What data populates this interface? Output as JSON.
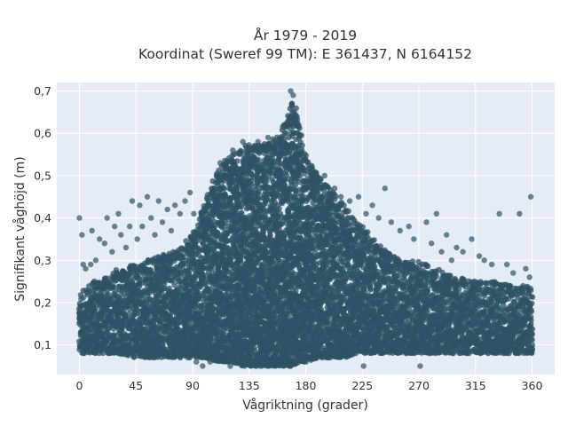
{
  "chart_data": {
    "type": "scatter",
    "title_line1": "År 1979 - 2019",
    "title_line2": "Koordinat (Sweref 99 TM): E 361437, N 6164152",
    "xlabel": "Vågriktning (grader)",
    "ylabel": "Signifikant våghöjd (m)",
    "xlim": [
      -18,
      378
    ],
    "ylim": [
      0.03,
      0.72
    ],
    "xticks": [
      0,
      45,
      90,
      135,
      180,
      225,
      270,
      315,
      360
    ],
    "xtick_labels": [
      "0",
      "45",
      "90",
      "135",
      "180",
      "225",
      "270",
      "315",
      "360"
    ],
    "yticks": [
      0.1,
      0.2,
      0.3,
      0.4,
      0.5,
      0.6,
      0.7
    ],
    "ytick_labels": [
      "0,1",
      "0,2",
      "0,3",
      "0,4",
      "0,5",
      "0,6",
      "0,7"
    ],
    "grid": true,
    "marker_color": "#2f5366",
    "plot_background": "#e5ecf6",
    "envelope": {
      "direction": [
        0,
        10,
        20,
        30,
        45,
        60,
        75,
        90,
        100,
        110,
        120,
        130,
        135,
        140,
        150,
        160,
        165,
        170,
        175,
        180,
        190,
        200,
        210,
        225,
        240,
        255,
        270,
        285,
        300,
        315,
        330,
        345,
        360
      ],
      "upper": [
        0.22,
        0.25,
        0.26,
        0.28,
        0.29,
        0.31,
        0.32,
        0.36,
        0.44,
        0.52,
        0.55,
        0.57,
        0.58,
        0.57,
        0.58,
        0.6,
        0.64,
        0.68,
        0.63,
        0.55,
        0.5,
        0.47,
        0.43,
        0.38,
        0.33,
        0.3,
        0.3,
        0.28,
        0.26,
        0.25,
        0.25,
        0.24,
        0.24
      ],
      "lower": [
        0.08,
        0.08,
        0.08,
        0.08,
        0.07,
        0.07,
        0.07,
        0.07,
        0.07,
        0.06,
        0.06,
        0.05,
        0.05,
        0.05,
        0.05,
        0.05,
        0.05,
        0.05,
        0.06,
        0.06,
        0.07,
        0.07,
        0.07,
        0.08,
        0.08,
        0.08,
        0.08,
        0.08,
        0.08,
        0.08,
        0.08,
        0.08,
        0.08
      ]
    },
    "outliers": [
      {
        "x": 0,
        "y": 0.4
      },
      {
        "x": 2,
        "y": 0.36
      },
      {
        "x": 3,
        "y": 0.29
      },
      {
        "x": 5,
        "y": 0.28
      },
      {
        "x": 9,
        "y": 0.29
      },
      {
        "x": 10,
        "y": 0.37
      },
      {
        "x": 13,
        "y": 0.3
      },
      {
        "x": 16,
        "y": 0.35
      },
      {
        "x": 20,
        "y": 0.34
      },
      {
        "x": 22,
        "y": 0.4
      },
      {
        "x": 26,
        "y": 0.32
      },
      {
        "x": 28,
        "y": 0.38
      },
      {
        "x": 31,
        "y": 0.41
      },
      {
        "x": 33,
        "y": 0.36
      },
      {
        "x": 37,
        "y": 0.33
      },
      {
        "x": 40,
        "y": 0.38
      },
      {
        "x": 42,
        "y": 0.44
      },
      {
        "x": 46,
        "y": 0.35
      },
      {
        "x": 48,
        "y": 0.43
      },
      {
        "x": 50,
        "y": 0.38
      },
      {
        "x": 54,
        "y": 0.45
      },
      {
        "x": 57,
        "y": 0.4
      },
      {
        "x": 60,
        "y": 0.36
      },
      {
        "x": 63,
        "y": 0.44
      },
      {
        "x": 66,
        "y": 0.39
      },
      {
        "x": 70,
        "y": 0.42
      },
      {
        "x": 73,
        "y": 0.37
      },
      {
        "x": 76,
        "y": 0.43
      },
      {
        "x": 80,
        "y": 0.41
      },
      {
        "x": 84,
        "y": 0.44
      },
      {
        "x": 88,
        "y": 0.46
      },
      {
        "x": 91,
        "y": 0.41
      },
      {
        "x": 93,
        "y": 0.06
      },
      {
        "x": 98,
        "y": 0.05
      },
      {
        "x": 104,
        "y": 0.06
      },
      {
        "x": 120,
        "y": 0.05
      },
      {
        "x": 112,
        "y": 0.53
      },
      {
        "x": 122,
        "y": 0.56
      },
      {
        "x": 130,
        "y": 0.58
      },
      {
        "x": 142,
        "y": 0.58
      },
      {
        "x": 150,
        "y": 0.59
      },
      {
        "x": 168,
        "y": 0.7
      },
      {
        "x": 170,
        "y": 0.69
      },
      {
        "x": 185,
        "y": 0.52
      },
      {
        "x": 195,
        "y": 0.5
      },
      {
        "x": 203,
        "y": 0.47
      },
      {
        "x": 208,
        "y": 0.45
      },
      {
        "x": 215,
        "y": 0.44
      },
      {
        "x": 222,
        "y": 0.45
      },
      {
        "x": 226,
        "y": 0.05
      },
      {
        "x": 228,
        "y": 0.41
      },
      {
        "x": 233,
        "y": 0.43
      },
      {
        "x": 238,
        "y": 0.4
      },
      {
        "x": 243,
        "y": 0.47
      },
      {
        "x": 248,
        "y": 0.39
      },
      {
        "x": 255,
        "y": 0.37
      },
      {
        "x": 262,
        "y": 0.38
      },
      {
        "x": 266,
        "y": 0.35
      },
      {
        "x": 271,
        "y": 0.05
      },
      {
        "x": 276,
        "y": 0.39
      },
      {
        "x": 280,
        "y": 0.34
      },
      {
        "x": 284,
        "y": 0.41
      },
      {
        "x": 288,
        "y": 0.32
      },
      {
        "x": 292,
        "y": 0.36
      },
      {
        "x": 296,
        "y": 0.3
      },
      {
        "x": 300,
        "y": 0.33
      },
      {
        "x": 305,
        "y": 0.32
      },
      {
        "x": 312,
        "y": 0.35
      },
      {
        "x": 318,
        "y": 0.31
      },
      {
        "x": 322,
        "y": 0.3
      },
      {
        "x": 328,
        "y": 0.29
      },
      {
        "x": 334,
        "y": 0.41
      },
      {
        "x": 340,
        "y": 0.29
      },
      {
        "x": 345,
        "y": 0.27
      },
      {
        "x": 350,
        "y": 0.41
      },
      {
        "x": 355,
        "y": 0.28
      },
      {
        "x": 359,
        "y": 0.45
      },
      {
        "x": 358,
        "y": 0.26
      }
    ]
  }
}
